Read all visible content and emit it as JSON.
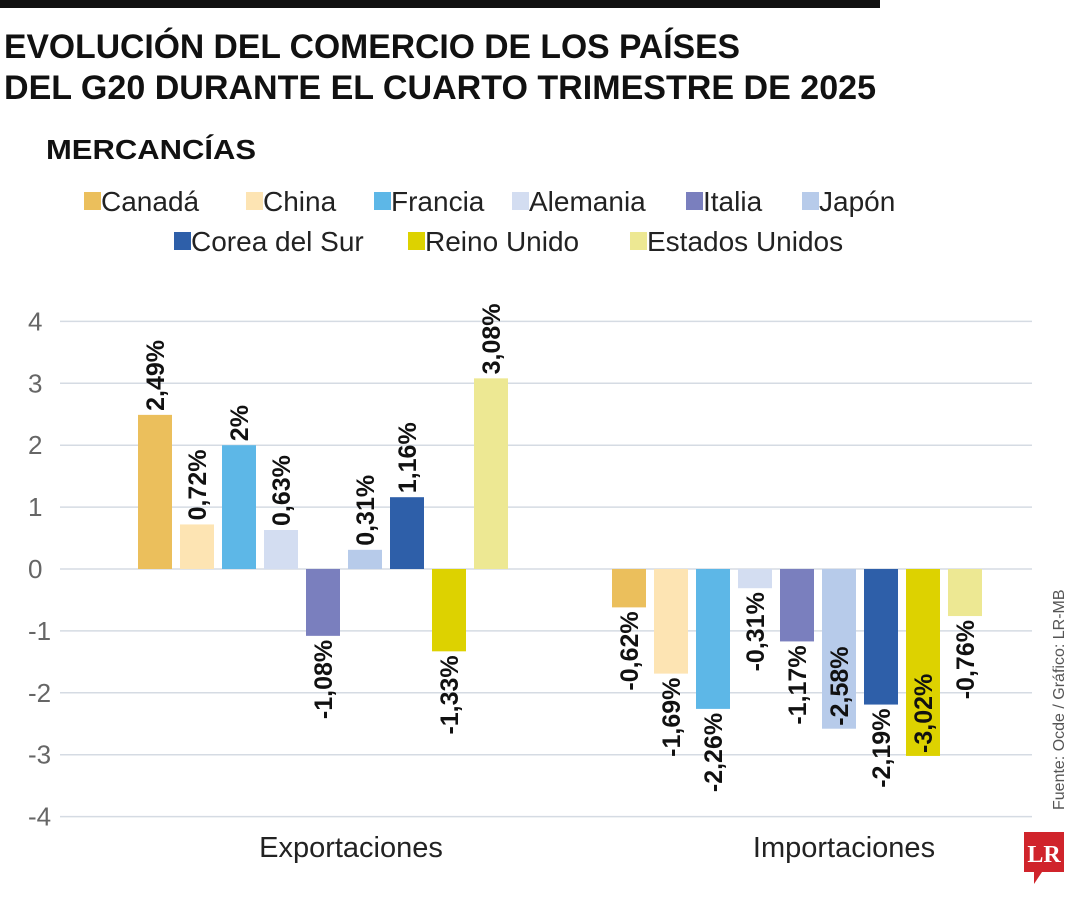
{
  "title_lines": [
    "EVOLUCIÓN DEL COMERCIO DE LOS PAÍSES",
    "DEL G20 DURANTE EL CUARTO TRIMESTRE DE 2025"
  ],
  "subtitle": "MERCANCÍAS",
  "source": "Fuente: Ocde / Gráfico: LR-MB",
  "logo_text": "LR",
  "chart_data": {
    "type": "bar",
    "title": "EVOLUCIÓN DEL COMERCIO DE LOS PAÍSES DEL G20 DURANTE EL CUARTO TRIMESTRE DE 2025",
    "subtitle": "MERCANCÍAS",
    "categories": [
      "Exportaciones",
      "Importaciones"
    ],
    "ylim": [
      -4,
      4
    ],
    "yticks": [
      4,
      3,
      2,
      1,
      0,
      -1,
      -2,
      -3,
      -4
    ],
    "grid": true,
    "legend_position": "top",
    "series": [
      {
        "name": "Canadá",
        "color": "#ebbf5c",
        "values": [
          2.49,
          -0.62
        ],
        "labels": [
          "2,49%",
          "-0,62%"
        ]
      },
      {
        "name": "China",
        "color": "#fde4b3",
        "values": [
          0.72,
          -1.69
        ],
        "labels": [
          "0,72%",
          "-1,69%"
        ]
      },
      {
        "name": "Francia",
        "color": "#5db7e7",
        "values": [
          2.0,
          -2.26
        ],
        "labels": [
          "2%",
          "-2,26%"
        ]
      },
      {
        "name": "Alemania",
        "color": "#d3ddf1",
        "values": [
          0.63,
          -0.31
        ],
        "labels": [
          "0,63%",
          "-0,31%"
        ]
      },
      {
        "name": "Italia",
        "color": "#7a7fbe",
        "values": [
          -1.08,
          -1.17
        ],
        "labels": [
          "-1,08%",
          "-1,17%"
        ]
      },
      {
        "name": "Japón",
        "color": "#b7cbea",
        "values": [
          0.31,
          -2.58
        ],
        "labels": [
          "0,31%",
          "-2,58%"
        ]
      },
      {
        "name": "Corea del Sur",
        "color": "#2e5fa9",
        "values": [
          1.16,
          -2.19
        ],
        "labels": [
          "1,16%",
          "-2,19%"
        ]
      },
      {
        "name": "Reino Unido",
        "color": "#ddd200",
        "values": [
          -1.33,
          -3.02
        ],
        "labels": [
          "-1,33%",
          "-3,02%"
        ]
      },
      {
        "name": "Estados Unidos",
        "color": "#ede893",
        "values": [
          3.08,
          -0.76
        ],
        "labels": [
          "3,08%",
          "-0,76%"
        ]
      }
    ]
  }
}
